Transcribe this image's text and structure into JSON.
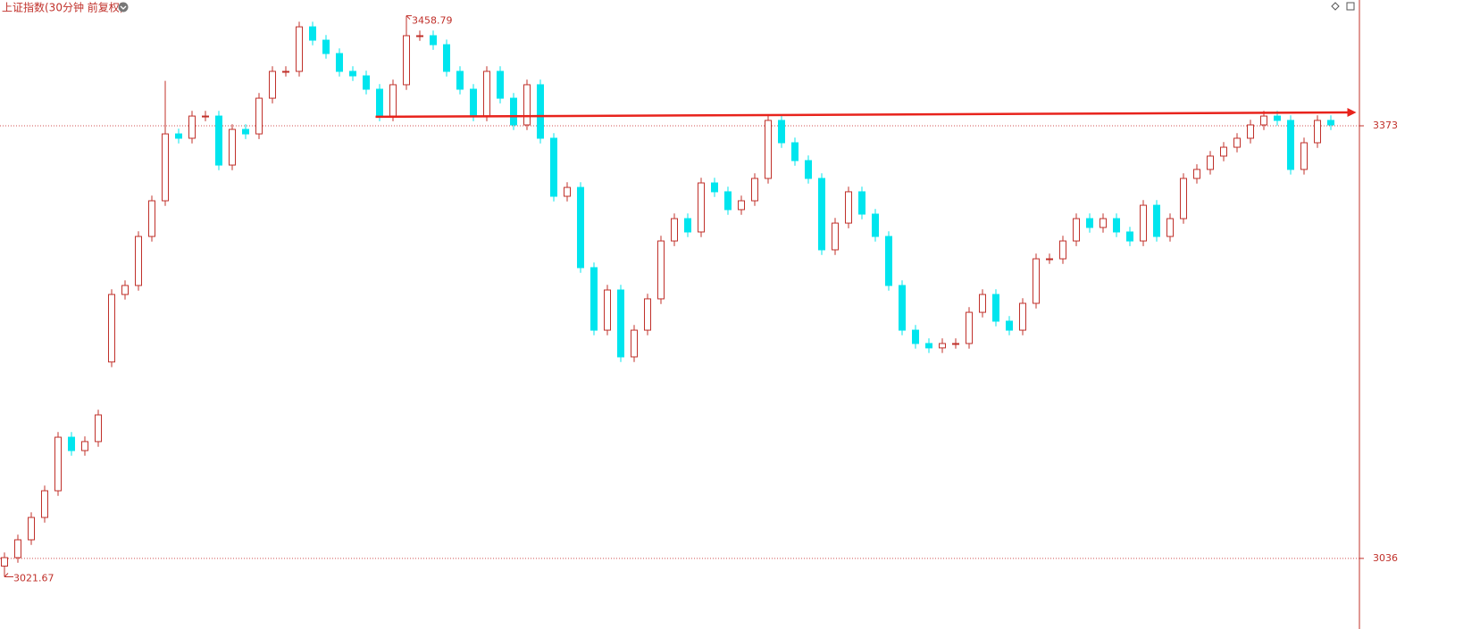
{
  "chart_data": {
    "type": "candlestick",
    "title": "上证指数(30分钟 前复权)",
    "up_color": "#c0302a",
    "down_color": "#00e5ee",
    "ylim": [
      2981,
      3471
    ],
    "yticks": [
      3036,
      3373
    ],
    "trend_line": {
      "x": [
        27.7,
        100.9
      ],
      "y": [
        3380,
        3383.4
      ],
      "color": "#e8231c"
    },
    "series": [
      {
        "open": [
          3030,
          3036.6,
          3050.5,
          3067.9,
          3088.7,
          3130.4,
          3120,
          3127,
          3189,
          3241.6,
          3248.6,
          3286.8,
          3314.6,
          3366.7,
          3363.3,
          3380.6,
          3380.6,
          3342.4,
          3370.2,
          3366.7,
          3394.5,
          3415.4,
          3415.4,
          3450.1,
          3439.7,
          3429.3,
          3415.4,
          3411.9,
          3401.5,
          3380.6,
          3405,
          3443.2,
          3443.2,
          3436.2,
          3415.4,
          3401.5,
          3380.6,
          3415.4,
          3394.5,
          3373.7,
          3405,
          3363.3,
          3318.1,
          3325,
          3262.5,
          3213.8,
          3245.1,
          3193,
          3213.8,
          3238.2,
          3283.3,
          3300.7,
          3290.3,
          3328.5,
          3321.6,
          3307.7,
          3314.6,
          3332,
          3377.2,
          3359.8,
          3345.9,
          3332,
          3276.4,
          3297.2,
          3321.6,
          3304.2,
          3286.8,
          3248.6,
          3213.8,
          3203.4,
          3200,
          3203.4,
          3203.4,
          3227.7,
          3241.6,
          3220.8,
          3213.8,
          3234.7,
          3269.4,
          3269.4,
          3283.3,
          3300.7,
          3293.8,
          3300.7,
          3290.3,
          3283.3,
          3311.1,
          3286.8,
          3300.7,
          3332,
          3339,
          3349.4,
          3356.3,
          3363.3,
          3373.7,
          3380.6,
          3377.2,
          3339,
          3359.8,
          3377.2
        ],
        "high": [
          3040.6,
          3054.5,
          3071.9,
          3092.7,
          3134.4,
          3134.4,
          3131,
          3151.8,
          3245.6,
          3252.6,
          3290.8,
          3318.6,
          3408,
          3370.7,
          3384.6,
          3384.6,
          3384.6,
          3374.2,
          3374.2,
          3398.5,
          3419.4,
          3419.4,
          3454.1,
          3454.1,
          3443.7,
          3433.3,
          3419.4,
          3415.9,
          3405.5,
          3409,
          3458.79,
          3447.2,
          3447.2,
          3440.2,
          3419.4,
          3405.5,
          3419.4,
          3419.4,
          3398.5,
          3409,
          3409,
          3367.3,
          3329,
          3329,
          3266.5,
          3249.1,
          3249.1,
          3217.8,
          3242.2,
          3287.3,
          3304.7,
          3304.7,
          3332.5,
          3332.5,
          3325.6,
          3318.6,
          3336,
          3381.2,
          3381.2,
          3363.8,
          3349.9,
          3336,
          3301.2,
          3325.6,
          3325.6,
          3308.2,
          3290.8,
          3252.6,
          3217.8,
          3207.4,
          3207.4,
          3207.4,
          3231.7,
          3245.6,
          3245.6,
          3224.8,
          3238.7,
          3273.4,
          3273.4,
          3287.3,
          3304.7,
          3304.7,
          3304.7,
          3304.7,
          3294.3,
          3315.1,
          3315.1,
          3304.7,
          3336,
          3343,
          3353.4,
          3360.3,
          3367.3,
          3377.7,
          3384.6,
          3384.6,
          3381.2,
          3363.8,
          3381.2,
          3381.2
        ],
        "low": [
          3021.67,
          3032.6,
          3046.5,
          3063.9,
          3084.7,
          3116,
          3116,
          3123,
          3185,
          3237.6,
          3244.6,
          3282.8,
          3310.6,
          3359.3,
          3359.3,
          3376.6,
          3338.4,
          3338.4,
          3362.7,
          3362.7,
          3390.5,
          3411.4,
          3411.4,
          3435.7,
          3425.3,
          3411.4,
          3407.9,
          3397.5,
          3376.6,
          3376.6,
          3401,
          3439.2,
          3432.2,
          3411.4,
          3397.5,
          3376.6,
          3376.6,
          3390.5,
          3369.7,
          3369.7,
          3359.3,
          3314.1,
          3314.1,
          3258.5,
          3209.8,
          3209.8,
          3189,
          3189,
          3209.8,
          3234.2,
          3279.3,
          3286.3,
          3286.3,
          3317.6,
          3303.7,
          3303.7,
          3310.6,
          3328,
          3355.8,
          3341.9,
          3328,
          3272.4,
          3272.4,
          3293.2,
          3300.2,
          3282.8,
          3244.6,
          3209.8,
          3199.4,
          3196,
          3196,
          3199.4,
          3199.4,
          3223.7,
          3216.8,
          3209.8,
          3209.8,
          3230.7,
          3265.4,
          3265.4,
          3279.3,
          3289.8,
          3289.8,
          3286.3,
          3279.3,
          3279.3,
          3282.8,
          3282.8,
          3296.7,
          3328,
          3335,
          3345.4,
          3352.3,
          3359.3,
          3369.7,
          3373.2,
          3335,
          3335,
          3355.8,
          3369.7
        ],
        "close": [
          3036.6,
          3050.5,
          3067.9,
          3088.7,
          3130.4,
          3120,
          3127,
          3147.8,
          3241.6,
          3248.6,
          3286.8,
          3314.6,
          3366.7,
          3363.3,
          3380.6,
          3380.6,
          3342.4,
          3370.2,
          3366.7,
          3394.5,
          3415.4,
          3415.4,
          3450.1,
          3439.7,
          3429.3,
          3415.4,
          3411.9,
          3401.5,
          3380.6,
          3405,
          3443.2,
          3443.2,
          3436.2,
          3415.4,
          3401.5,
          3380.6,
          3415.4,
          3394.5,
          3373.7,
          3405,
          3363.3,
          3318.1,
          3325,
          3262.5,
          3213.8,
          3245.1,
          3193,
          3213.8,
          3238.2,
          3283.3,
          3300.7,
          3290.3,
          3328.5,
          3321.6,
          3307.7,
          3314.6,
          3332,
          3377.2,
          3359.8,
          3345.9,
          3332,
          3276.4,
          3297.2,
          3321.6,
          3304.2,
          3286.8,
          3248.6,
          3213.8,
          3203.4,
          3200,
          3203.4,
          3203.4,
          3227.7,
          3241.6,
          3220.8,
          3213.8,
          3234.7,
          3269.4,
          3269.4,
          3283.3,
          3300.7,
          3293.8,
          3300.7,
          3290.3,
          3283.3,
          3311.1,
          3286.8,
          3300.7,
          3332,
          3339,
          3349.4,
          3356.3,
          3363.3,
          3373.7,
          3380.6,
          3377.2,
          3339,
          3359.8,
          3377.2,
          3373.7
        ]
      }
    ]
  }
}
